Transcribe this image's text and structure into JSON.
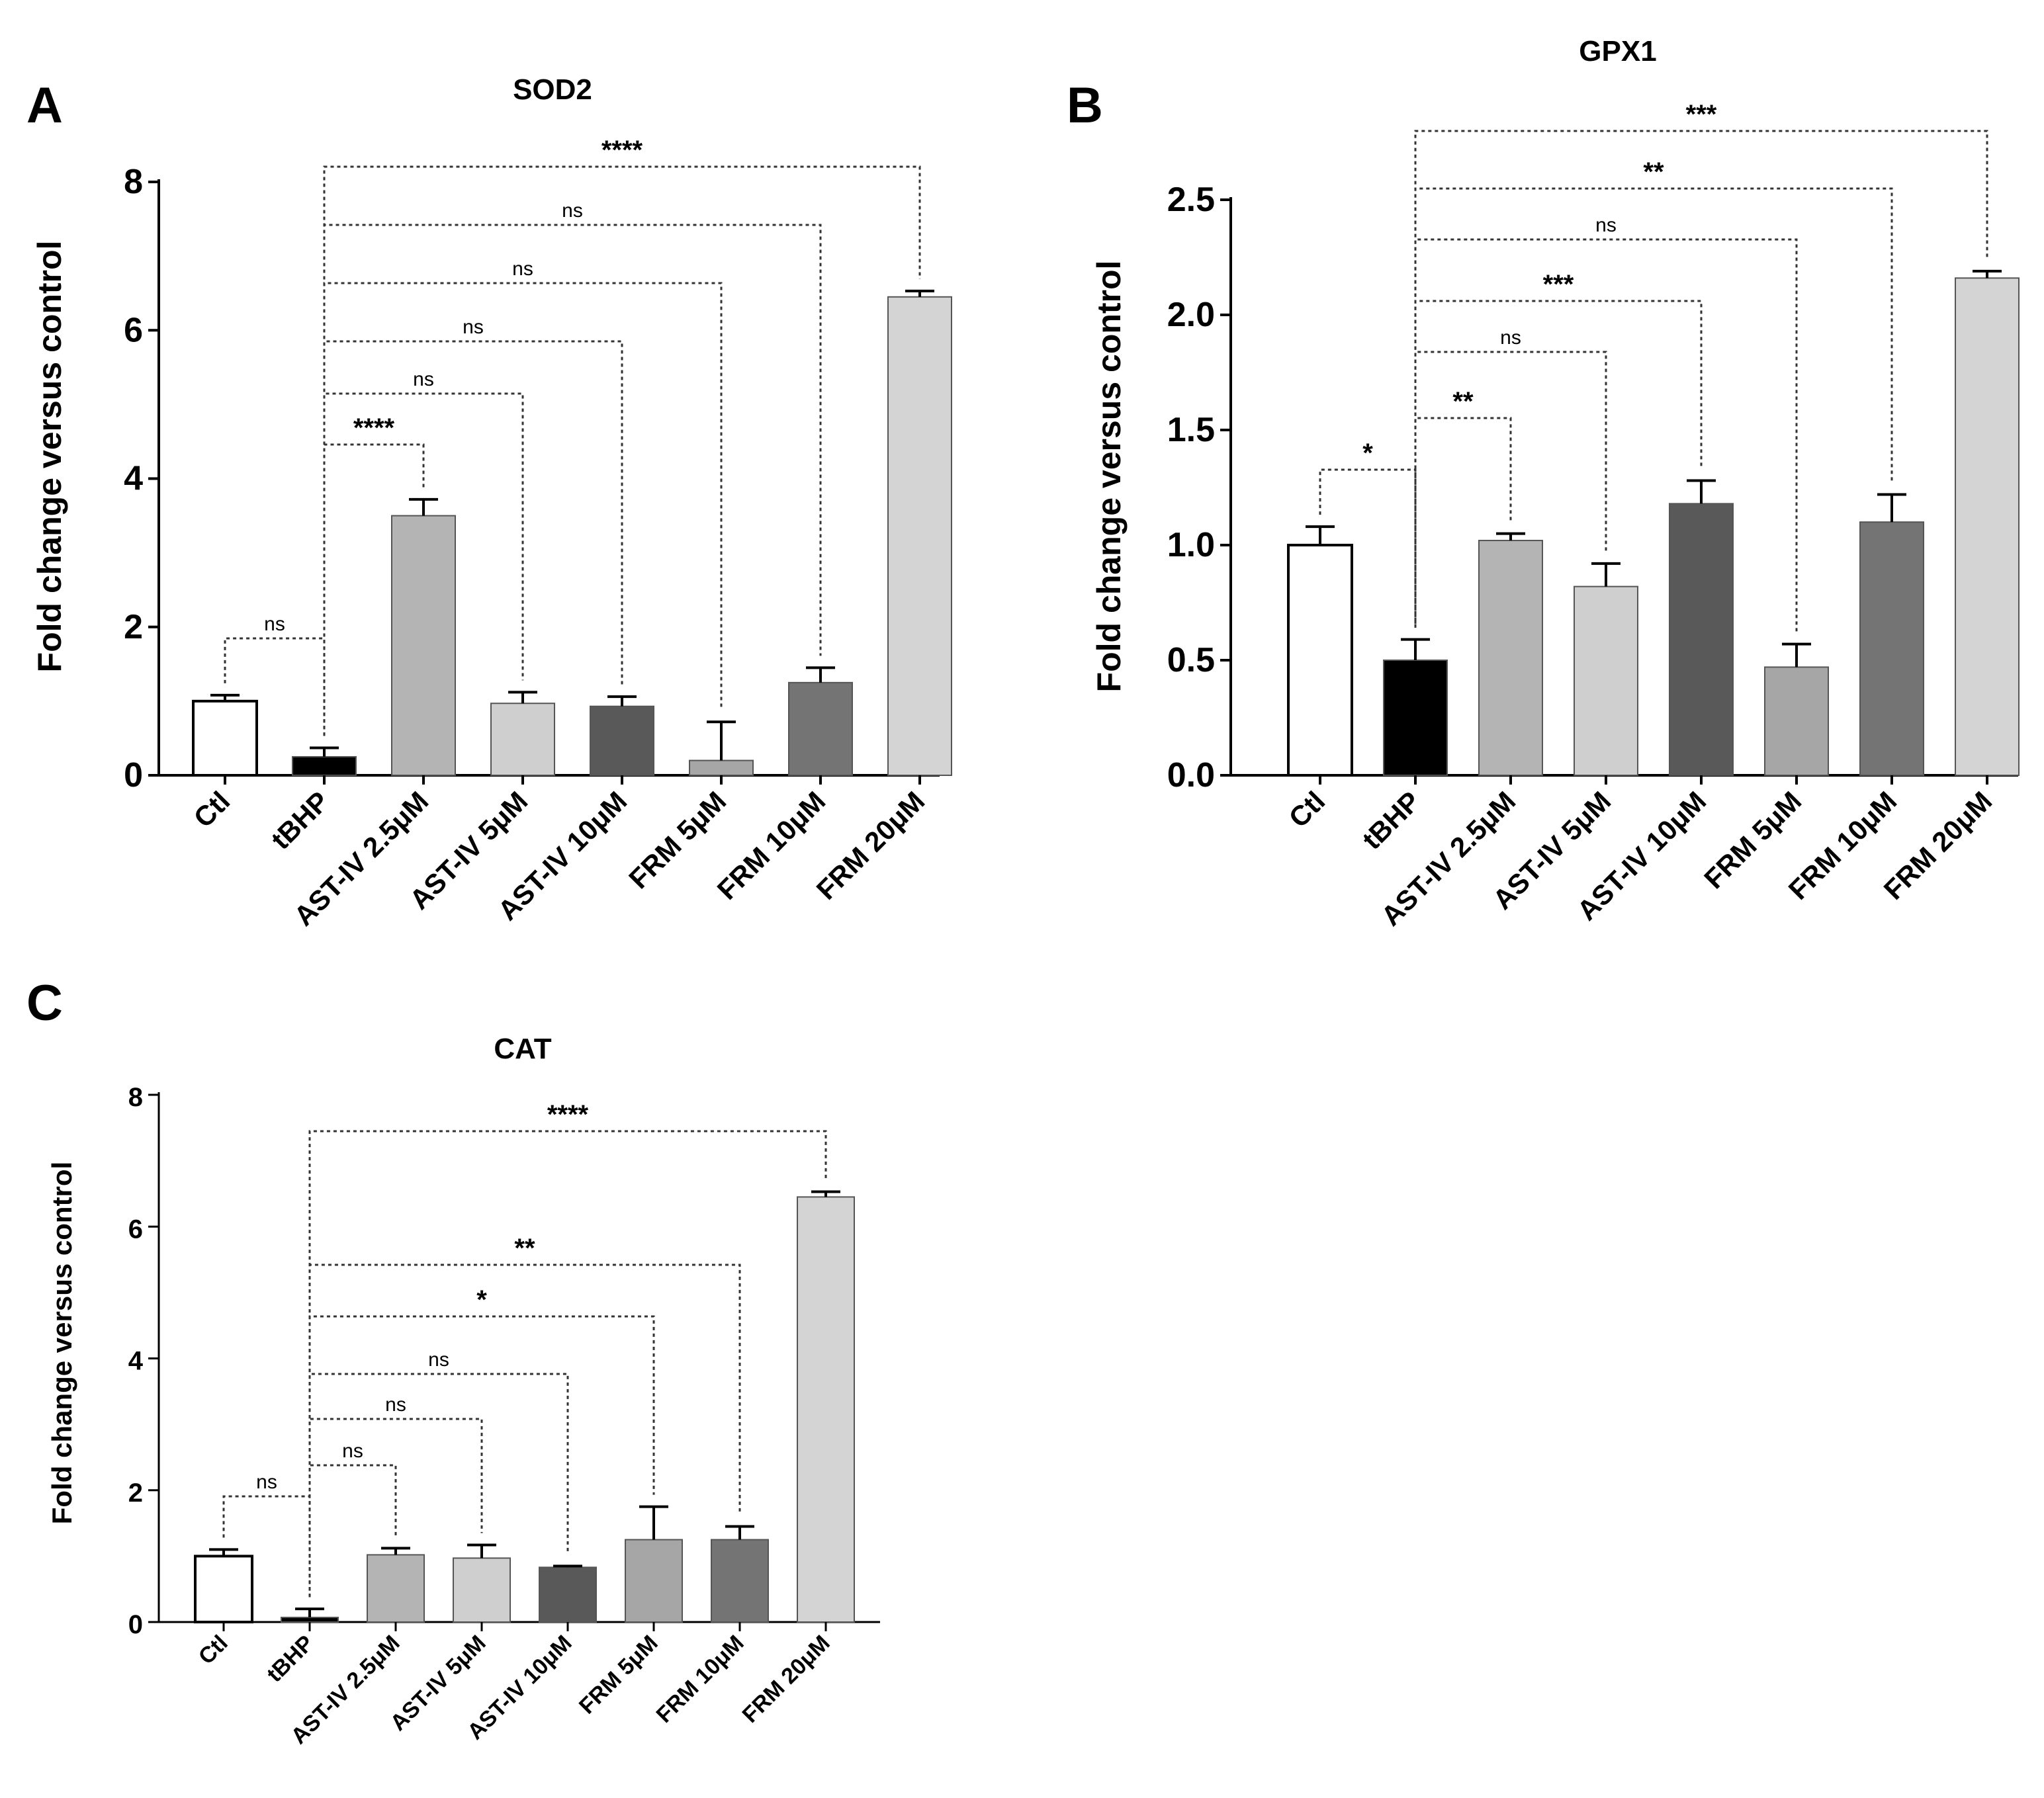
{
  "chart_data": [
    {
      "type": "bar",
      "panel": "A",
      "title": "SOD2",
      "xlabel": "",
      "ylabel": "Fold change versus control",
      "ylim": [
        0,
        8
      ],
      "yticks": [
        "0",
        "2",
        "4",
        "6",
        "8"
      ],
      "categories": [
        "Ctl",
        "tBHP",
        "AST-IV 2.5μM",
        "AST-IV 5μM",
        "AST-IV 10μM",
        "FRM 5μM",
        "FRM 10μM",
        "FRM 20μM"
      ],
      "values": [
        1.0,
        0.25,
        3.5,
        0.97,
        0.93,
        0.2,
        1.25,
        6.45
      ],
      "errors": [
        0.08,
        0.12,
        0.22,
        0.15,
        0.13,
        0.52,
        0.2,
        0.08
      ],
      "fills": [
        "#ffffff",
        "#000000",
        "#b4b4b4",
        "#cfcfcf",
        "#595959",
        "#a6a6a6",
        "#747474",
        "#d4d4d4"
      ],
      "comparisons": [
        {
          "from": 0,
          "to": 1,
          "label": "ns"
        },
        {
          "from": 1,
          "to": 2,
          "label": "****"
        },
        {
          "from": 1,
          "to": 3,
          "label": "ns"
        },
        {
          "from": 1,
          "to": 4,
          "label": "ns"
        },
        {
          "from": 1,
          "to": 5,
          "label": "ns"
        },
        {
          "from": 1,
          "to": 6,
          "label": "ns"
        },
        {
          "from": 1,
          "to": 7,
          "label": "****"
        }
      ]
    },
    {
      "type": "bar",
      "panel": "B",
      "title": "GPX1",
      "xlabel": "",
      "ylabel": "Fold change versus control",
      "ylim": [
        0,
        2.5
      ],
      "yticks": [
        "0.0",
        "0.5",
        "1.0",
        "1.5",
        "2.0",
        "2.5"
      ],
      "categories": [
        "Ctl",
        "tBHP",
        "AST-IV 2.5μM",
        "AST-IV 5μM",
        "AST-IV 10μM",
        "FRM 5μM",
        "FRM 10μM",
        "FRM 20μM"
      ],
      "values": [
        1.0,
        0.5,
        1.02,
        0.82,
        1.18,
        0.47,
        1.1,
        2.16
      ],
      "errors": [
        0.08,
        0.09,
        0.03,
        0.1,
        0.1,
        0.1,
        0.12,
        0.03
      ],
      "fills": [
        "#ffffff",
        "#000000",
        "#b4b4b4",
        "#cfcfcf",
        "#595959",
        "#a6a6a6",
        "#747474",
        "#d4d4d4"
      ],
      "comparisons": [
        {
          "from": 0,
          "to": 1,
          "label": "*"
        },
        {
          "from": 1,
          "to": 2,
          "label": "**"
        },
        {
          "from": 1,
          "to": 3,
          "label": "ns"
        },
        {
          "from": 1,
          "to": 4,
          "label": "***"
        },
        {
          "from": 1,
          "to": 5,
          "label": "ns"
        },
        {
          "from": 1,
          "to": 6,
          "label": "**"
        },
        {
          "from": 1,
          "to": 7,
          "label": "***"
        }
      ]
    },
    {
      "type": "bar",
      "panel": "C",
      "title": "CAT",
      "xlabel": "",
      "ylabel": "Fold change versus control",
      "ylim": [
        0,
        8
      ],
      "yticks": [
        "0",
        "2",
        "4",
        "6",
        "8"
      ],
      "categories": [
        "Ctl",
        "tBHP",
        "AST-IV 2.5μM",
        "AST-IV 5μM",
        "AST-IV 10μM",
        "FRM 5μM",
        "FRM 10μM",
        "FRM 20μM"
      ],
      "values": [
        1.0,
        0.07,
        1.02,
        0.97,
        0.83,
        1.25,
        1.25,
        6.45
      ],
      "errors": [
        0.1,
        0.13,
        0.1,
        0.2,
        0.02,
        0.5,
        0.2,
        0.08
      ],
      "fills": [
        "#ffffff",
        "#000000",
        "#b4b4b4",
        "#cfcfcf",
        "#595959",
        "#a6a6a6",
        "#747474",
        "#d4d4d4"
      ],
      "comparisons": [
        {
          "from": 0,
          "to": 1,
          "label": "ns"
        },
        {
          "from": 1,
          "to": 2,
          "label": "ns"
        },
        {
          "from": 1,
          "to": 3,
          "label": "ns"
        },
        {
          "from": 1,
          "to": 4,
          "label": "ns"
        },
        {
          "from": 1,
          "to": 5,
          "label": "*"
        },
        {
          "from": 1,
          "to": 6,
          "label": "**"
        },
        {
          "from": 1,
          "to": 7,
          "label": "****"
        }
      ]
    }
  ]
}
